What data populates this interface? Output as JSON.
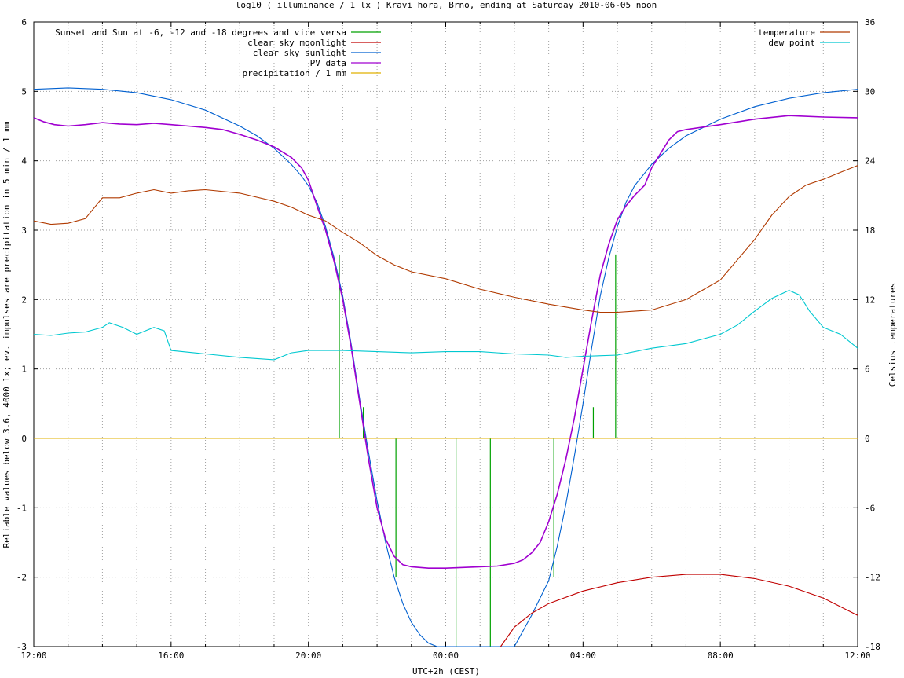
{
  "chart_data": {
    "type": "line",
    "title": "log10 ( illuminance / 1 lx ) Kravi hora, Brno, ending at Saturday 2010-06-05 noon",
    "xlabel": "UTC+2h (CEST)",
    "ylabel": "Reliable values below 3.6, 4000 lx; ev. impulses are precipitation in 5 min / 1 mm",
    "y2label": "Celsius temperatures",
    "xlim": [
      0,
      24
    ],
    "ylim": [
      -3,
      6
    ],
    "y2lim": [
      -18,
      36
    ],
    "grid": true,
    "x_ticks": [
      {
        "x": 0,
        "label": "12:00"
      },
      {
        "x": 4,
        "label": "16:00"
      },
      {
        "x": 8,
        "label": "20:00"
      },
      {
        "x": 12,
        "label": "00:00"
      },
      {
        "x": 16,
        "label": "04:00"
      },
      {
        "x": 20,
        "label": "08:00"
      },
      {
        "x": 24,
        "label": "12:00"
      }
    ],
    "y_ticks": [
      "-3",
      "-2",
      "-1",
      "0",
      "1",
      "2",
      "3",
      "4",
      "5",
      "6"
    ],
    "y2_ticks": [
      "-18",
      "-12",
      "-6",
      "0",
      "6",
      "12",
      "18",
      "24",
      "30",
      "36"
    ],
    "legend_left_position": "top-left",
    "legend_right_position": "top-right",
    "legend_left": [
      {
        "name": "Sunset and Sun at -6, -12 and -18 degrees and vice versa",
        "color": "#00a000"
      },
      {
        "name": "clear sky moonlight",
        "color": "#c00000"
      },
      {
        "name": "clear sky sunlight",
        "color": "#0060d0"
      },
      {
        "name": "PV data",
        "color": "#a000d0"
      },
      {
        "name": "precipitation / 1 mm",
        "color": "#e0b000"
      }
    ],
    "legend_right": [
      {
        "name": "temperature",
        "color": "#b03a00"
      },
      {
        "name": "dew point",
        "color": "#00c8d0"
      }
    ],
    "sun_events": [
      {
        "x": 8.9,
        "y": 2.65
      },
      {
        "x": 9.6,
        "y": 0.45
      },
      {
        "x": 10.55,
        "y": -2.0
      },
      {
        "x": 12.3,
        "y": -3.0
      },
      {
        "x": 13.3,
        "y": -3.0
      },
      {
        "x": 15.15,
        "y": -2.0
      },
      {
        "x": 16.3,
        "y": 0.45
      },
      {
        "x": 16.95,
        "y": 2.65
      }
    ],
    "series": [
      {
        "name": "clear sky sunlight",
        "color": "#0060d0",
        "axis": "y1",
        "x": [
          0,
          1,
          2,
          3,
          4,
          5,
          6,
          6.5,
          7,
          7.5,
          7.8,
          8,
          8.25,
          8.5,
          8.75,
          9,
          9.25,
          9.5,
          9.75,
          10,
          10.25,
          10.5,
          10.75,
          11,
          11.25,
          11.5,
          11.75,
          11.85,
          12,
          14,
          14.5,
          15,
          15.25,
          15.5,
          15.75,
          16,
          16.25,
          16.5,
          16.75,
          17,
          17.25,
          17.5,
          18,
          18.5,
          19,
          20,
          21,
          22,
          23,
          24
        ],
        "y": [
          5.03,
          5.05,
          5.03,
          4.98,
          4.88,
          4.73,
          4.5,
          4.36,
          4.18,
          3.95,
          3.78,
          3.64,
          3.4,
          3.05,
          2.6,
          2.05,
          1.35,
          0.55,
          -0.2,
          -0.9,
          -1.5,
          -2.0,
          -2.38,
          -2.65,
          -2.83,
          -2.95,
          -3.0,
          -3.0,
          -3.0,
          -3.0,
          -2.55,
          -2.05,
          -1.55,
          -0.95,
          -0.25,
          0.5,
          1.3,
          2.05,
          2.6,
          3.05,
          3.4,
          3.64,
          3.95,
          4.18,
          4.36,
          4.6,
          4.78,
          4.9,
          4.98,
          5.03
        ]
      },
      {
        "name": "PV data",
        "color": "#a000d0",
        "axis": "y1",
        "x": [
          0,
          0.3,
          0.6,
          1,
          1.5,
          2,
          2.5,
          3,
          3.5,
          4,
          4.5,
          5,
          5.5,
          6,
          6.5,
          7,
          7.5,
          7.8,
          8,
          8.25,
          8.5,
          8.75,
          9,
          9.25,
          9.5,
          9.75,
          10,
          10.25,
          10.5,
          10.75,
          11,
          11.5,
          12,
          12.5,
          13,
          13.5,
          14,
          14.25,
          14.5,
          14.75,
          15,
          15.25,
          15.5,
          15.75,
          16,
          16.25,
          16.5,
          16.75,
          17,
          17.25,
          17.5,
          17.8,
          18,
          18.25,
          18.5,
          18.75,
          19,
          20,
          21,
          22,
          23,
          24
        ],
        "y": [
          4.62,
          4.56,
          4.52,
          4.5,
          4.52,
          4.55,
          4.53,
          4.52,
          4.54,
          4.52,
          4.5,
          4.48,
          4.45,
          4.38,
          4.3,
          4.2,
          4.05,
          3.9,
          3.72,
          3.35,
          3.0,
          2.55,
          2.0,
          1.3,
          0.5,
          -0.3,
          -1.0,
          -1.45,
          -1.7,
          -1.82,
          -1.85,
          -1.87,
          -1.87,
          -1.86,
          -1.85,
          -1.84,
          -1.8,
          -1.75,
          -1.65,
          -1.5,
          -1.2,
          -0.8,
          -0.3,
          0.3,
          1.0,
          1.7,
          2.35,
          2.8,
          3.15,
          3.35,
          3.5,
          3.65,
          3.9,
          4.1,
          4.3,
          4.42,
          4.45,
          4.52,
          4.6,
          4.65,
          4.63,
          4.62
        ]
      },
      {
        "name": "clear sky moonlight",
        "color": "#c00000",
        "axis": "y1",
        "x": [
          13.6,
          14,
          14.5,
          15,
          16,
          17,
          18,
          19,
          20,
          21,
          22,
          23,
          24
        ],
        "y": [
          -3.0,
          -2.72,
          -2.52,
          -2.38,
          -2.2,
          -2.08,
          -2.0,
          -1.96,
          -1.96,
          -2.02,
          -2.13,
          -2.3,
          -2.55
        ]
      },
      {
        "name": "precipitation / 1 mm",
        "color": "#e0b000",
        "axis": "y1",
        "x": [
          0,
          24
        ],
        "y": [
          0,
          0
        ]
      },
      {
        "name": "temperature",
        "color": "#b03a00",
        "axis": "y2",
        "x": [
          0,
          0.5,
          1,
          1.5,
          2,
          2.5,
          3,
          3.5,
          4,
          4.5,
          5,
          6,
          7,
          7.5,
          8,
          8.5,
          9,
          9.5,
          10,
          10.5,
          11,
          12,
          13,
          14,
          15,
          16,
          16.5,
          17,
          17.5,
          18,
          19,
          20,
          21,
          21.5,
          22,
          22.5,
          23,
          23.5,
          24
        ],
        "y": [
          18.8,
          18.5,
          18.6,
          19.0,
          20.8,
          20.8,
          21.2,
          21.5,
          21.2,
          21.4,
          21.5,
          21.2,
          20.5,
          20.0,
          19.3,
          18.8,
          17.8,
          16.9,
          15.8,
          15.0,
          14.4,
          13.8,
          12.9,
          12.2,
          11.6,
          11.1,
          10.9,
          10.9,
          11.0,
          11.1,
          12.0,
          13.7,
          17.2,
          19.3,
          20.9,
          21.9,
          22.4,
          23.0,
          23.6
        ]
      },
      {
        "name": "dew point",
        "color": "#00c8d0",
        "axis": "y2",
        "x": [
          0,
          0.5,
          1,
          1.5,
          2,
          2.2,
          2.6,
          3,
          3.5,
          3.8,
          4,
          5,
          6,
          7,
          7.5,
          8,
          9,
          10,
          11,
          12,
          13,
          14,
          15,
          15.5,
          16,
          17,
          18,
          19,
          20,
          20.5,
          21,
          21.5,
          22,
          22.3,
          22.6,
          23,
          23.5,
          24
        ],
        "y": [
          9.0,
          8.9,
          9.1,
          9.2,
          9.6,
          10.0,
          9.6,
          9.0,
          9.6,
          9.3,
          7.6,
          7.3,
          7.0,
          6.8,
          7.4,
          7.6,
          7.6,
          7.5,
          7.4,
          7.5,
          7.5,
          7.3,
          7.2,
          7.0,
          7.1,
          7.2,
          7.8,
          8.2,
          9.0,
          9.8,
          11.0,
          12.1,
          12.8,
          12.4,
          11.0,
          9.6,
          9.0,
          7.8
        ]
      }
    ]
  }
}
